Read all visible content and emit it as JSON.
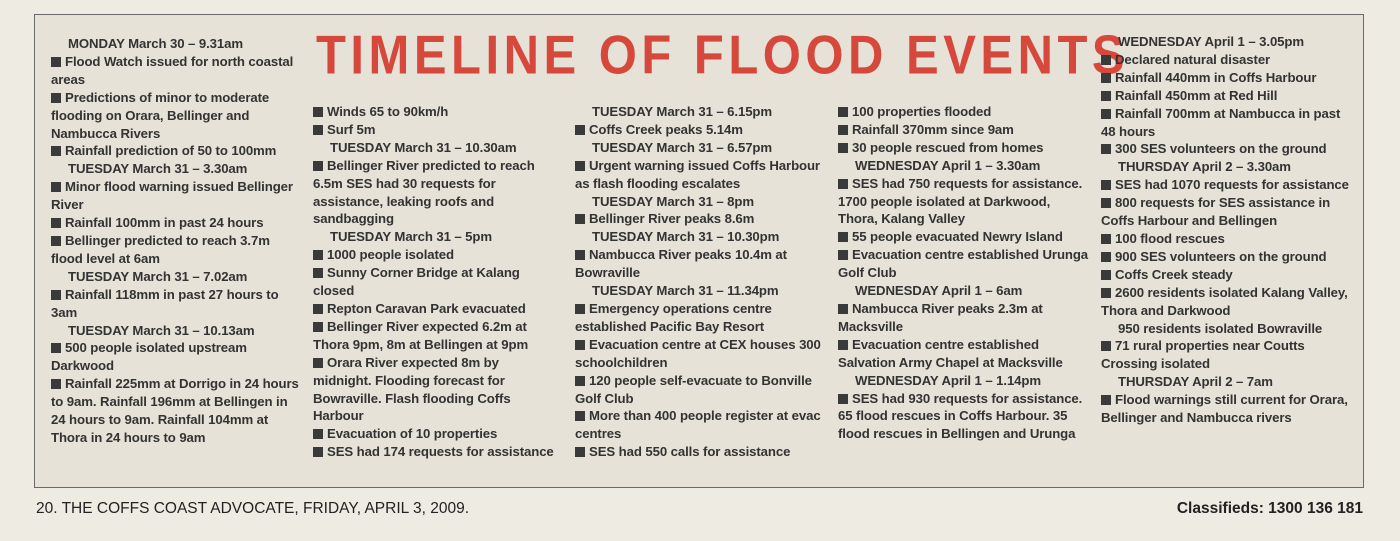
{
  "title": "TIMELINE OF FLOOD EVENTS",
  "accent_color": "#d6473c",
  "columns": [
    [
      {
        "type": "head",
        "text": "MONDAY March 30 – 9.31am"
      },
      {
        "type": "item",
        "text": "Flood Watch issued for north coastal areas"
      },
      {
        "type": "item",
        "text": "Predictions of minor to moderate flooding on Orara, Bellinger and Nambucca Rivers"
      },
      {
        "type": "item",
        "text": "Rainfall prediction of 50 to 100mm"
      },
      {
        "type": "head",
        "text": "TUESDAY March 31 – 3.30am"
      },
      {
        "type": "item",
        "text": "Minor flood warning issued Bellinger River"
      },
      {
        "type": "item",
        "text": "Rainfall 100mm in past 24 hours"
      },
      {
        "type": "item",
        "text": "Bellinger predicted to reach 3.7m flood level at 6am"
      },
      {
        "type": "head",
        "text": "TUESDAY March 31 – 7.02am"
      },
      {
        "type": "item",
        "text": "Rainfall 118mm in past 27 hours to 3am"
      },
      {
        "type": "head",
        "text": "TUESDAY March 31 – 10.13am"
      },
      {
        "type": "item",
        "text": "500 people isolated upstream Darkwood"
      },
      {
        "type": "item",
        "text": "Rainfall 225mm at Dorrigo in 24 hours to 9am. Rainfall 196mm at Bellingen in 24 hours to 9am. Rainfall 104mm at Thora in 24 hours to 9am"
      }
    ],
    [
      {
        "type": "item",
        "text": "Winds 65 to 90km/h"
      },
      {
        "type": "item",
        "text": "Surf 5m"
      },
      {
        "type": "head",
        "text": "TUESDAY March 31 – 10.30am"
      },
      {
        "type": "item",
        "text": "Bellinger River predicted to reach 6.5m SES had 30 requests for assistance, leaking roofs and sandbagging"
      },
      {
        "type": "head",
        "text": "TUESDAY March 31 – 5pm"
      },
      {
        "type": "item",
        "text": "1000 people isolated"
      },
      {
        "type": "item",
        "text": "Sunny Corner Bridge at Kalang closed"
      },
      {
        "type": "item",
        "text": "Repton Caravan Park evacuated"
      },
      {
        "type": "item",
        "text": "Bellinger River expected 6.2m at Thora 9pm, 8m at Bellingen at 9pm"
      },
      {
        "type": "item",
        "text": "Orara River expected 8m by midnight. Flooding forecast for Bowraville. Flash flooding Coffs Harbour"
      },
      {
        "type": "item",
        "text": "Evacuation of 10 properties"
      },
      {
        "type": "item",
        "text": "SES had 174 requests for assistance"
      }
    ],
    [
      {
        "type": "head",
        "text": "TUESDAY March 31 – 6.15pm"
      },
      {
        "type": "item",
        "text": "Coffs Creek peaks 5.14m"
      },
      {
        "type": "head",
        "text": "TUESDAY March 31 – 6.57pm"
      },
      {
        "type": "item",
        "text": "Urgent warning issued Coffs Harbour as flash flooding escalates"
      },
      {
        "type": "head",
        "text": "TUESDAY March 31 – 8pm"
      },
      {
        "type": "item",
        "text": "Bellinger River peaks 8.6m"
      },
      {
        "type": "head",
        "text": "TUESDAY March 31 – 10.30pm"
      },
      {
        "type": "item",
        "text": "Nambucca River peaks 10.4m at Bowraville"
      },
      {
        "type": "head",
        "text": "TUESDAY March 31 – 11.34pm"
      },
      {
        "type": "item",
        "text": "Emergency operations centre established Pacific Bay Resort"
      },
      {
        "type": "item",
        "text": "Evacuation centre at CEX houses 300 schoolchildren"
      },
      {
        "type": "item",
        "text": "120 people self-evacuate to Bonville Golf Club"
      },
      {
        "type": "item",
        "text": "More than 400 people register at evac centres"
      },
      {
        "type": "item",
        "text": "SES had 550 calls for assistance"
      }
    ],
    [
      {
        "type": "item",
        "text": "100 properties flooded"
      },
      {
        "type": "item",
        "text": "Rainfall 370mm since 9am"
      },
      {
        "type": "item",
        "text": "30 people rescued from homes"
      },
      {
        "type": "head",
        "text": "WEDNESDAY April 1 – 3.30am"
      },
      {
        "type": "item",
        "text": "SES had 750 requests for assistance. 1700 people isolated at Darkwood, Thora, Kalang Valley"
      },
      {
        "type": "item",
        "text": "55 people evacuated Newry Island"
      },
      {
        "type": "item",
        "text": "Evacuation centre established Urunga Golf Club"
      },
      {
        "type": "head",
        "text": "WEDNESDAY April 1 – 6am"
      },
      {
        "type": "item",
        "text": "Nambucca River peaks 2.3m at Macksville"
      },
      {
        "type": "item",
        "text": "Evacuation centre established Salvation Army Chapel at Macksville"
      },
      {
        "type": "head",
        "text": "WEDNESDAY April 1 – 1.14pm"
      },
      {
        "type": "item",
        "text": "SES had 930 requests for assistance. 65 flood rescues in Coffs Harbour. 35 flood rescues in Bellingen and Urunga"
      }
    ],
    [
      {
        "type": "head",
        "text": "WEDNESDAY April 1 – 3.05pm"
      },
      {
        "type": "item",
        "text": "Declared natural disaster"
      },
      {
        "type": "item",
        "text": "Rainfall 440mm in Coffs Harbour"
      },
      {
        "type": "item",
        "text": "Rainfall 450mm at Red Hill"
      },
      {
        "type": "item",
        "text": "Rainfall 700mm at Nambucca in past 48 hours"
      },
      {
        "type": "item",
        "text": "300 SES volunteers on the ground"
      },
      {
        "type": "head",
        "text": "THURSDAY April 2 – 3.30am"
      },
      {
        "type": "item",
        "text": "SES had 1070 requests for assistance"
      },
      {
        "type": "item",
        "text": "800 requests for SES assistance in Coffs Harbour and Bellingen"
      },
      {
        "type": "item",
        "text": "100 flood rescues"
      },
      {
        "type": "item",
        "text": "900 SES volunteers on the ground"
      },
      {
        "type": "item",
        "text": "Coffs Creek steady"
      },
      {
        "type": "item",
        "text": "2600 residents isolated Kalang Valley, Thora and Darkwood"
      },
      {
        "type": "sub",
        "text": "950 residents isolated Bowraville"
      },
      {
        "type": "item",
        "text": "71 rural properties near Coutts Crossing isolated"
      },
      {
        "type": "head",
        "text": "THURSDAY April 2 – 7am"
      },
      {
        "type": "item",
        "text": "Flood warnings still current for Orara, Bellinger and Nambucca rivers"
      }
    ]
  ],
  "footer": {
    "left": "20. THE COFFS COAST ADVOCATE, FRIDAY, APRIL 3, 2009.",
    "right": "Classifieds: 1300 136 181"
  }
}
